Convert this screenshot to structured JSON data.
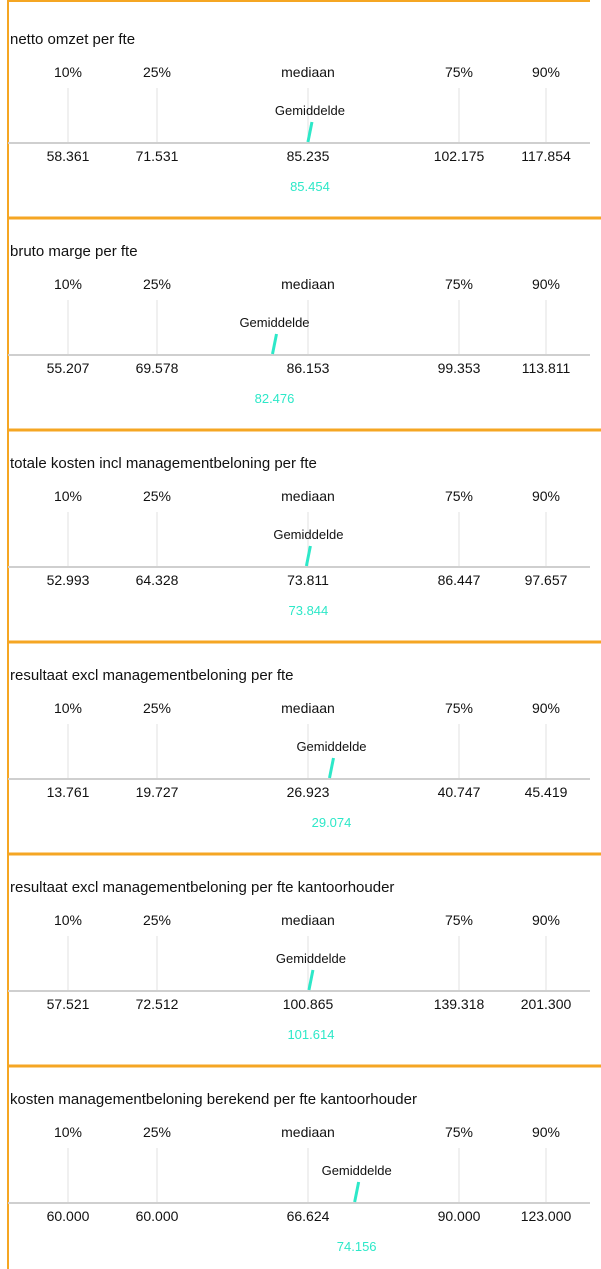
{
  "columns": [
    "10%",
    "25%",
    "mediaan",
    "75%",
    "90%"
  ],
  "mean_label": "Gemiddelde",
  "panels": [
    {
      "title": "netto omzet per fte",
      "values": [
        {
          "value": 58361,
          "label": "58.361"
        },
        {
          "value": 71531,
          "label": "71.531"
        },
        {
          "value": 85235,
          "label": "85.235"
        },
        {
          "value": 102175,
          "label": "102.175"
        },
        {
          "value": 117854,
          "label": "117.854"
        }
      ],
      "mean": {
        "value": 85454,
        "label": "85.454"
      }
    },
    {
      "title": "bruto marge per fte",
      "values": [
        {
          "value": 55207,
          "label": "55.207"
        },
        {
          "value": 69578,
          "label": "69.578"
        },
        {
          "value": 86153,
          "label": "86.153"
        },
        {
          "value": 99353,
          "label": "99.353"
        },
        {
          "value": 113811,
          "label": "113.811"
        }
      ],
      "mean": {
        "value": 82476,
        "label": "82.476"
      }
    },
    {
      "title": "totale kosten incl managementbeloning per fte",
      "values": [
        {
          "value": 52993,
          "label": "52.993"
        },
        {
          "value": 64328,
          "label": "64.328"
        },
        {
          "value": 73811,
          "label": "73.811"
        },
        {
          "value": 86447,
          "label": "86.447"
        },
        {
          "value": 97657,
          "label": "97.657"
        }
      ],
      "mean": {
        "value": 73844,
        "label": "73.844"
      }
    },
    {
      "title": "resultaat excl managementbeloning per fte",
      "values": [
        {
          "value": 13761,
          "label": "13.761"
        },
        {
          "value": 19727,
          "label": "19.727"
        },
        {
          "value": 26923,
          "label": "26.923"
        },
        {
          "value": 40747,
          "label": "40.747"
        },
        {
          "value": 45419,
          "label": "45.419"
        }
      ],
      "mean": {
        "value": 29074,
        "label": "29.074"
      }
    },
    {
      "title": "resultaat excl managementbeloning per fte kantoorhouder",
      "values": [
        {
          "value": 57521,
          "label": "57.521"
        },
        {
          "value": 72512,
          "label": "72.512"
        },
        {
          "value": 100865,
          "label": "100.865"
        },
        {
          "value": 139318,
          "label": "139.318"
        },
        {
          "value": 201300,
          "label": "201.300"
        }
      ],
      "mean": {
        "value": 101614,
        "label": "101.614"
      }
    },
    {
      "title": "kosten managementbeloning berekend per fte kantoorhouder",
      "values": [
        {
          "value": 60000,
          "label": "60.000"
        },
        {
          "value": 60000,
          "label": "60.000"
        },
        {
          "value": 66624,
          "label": "66.624"
        },
        {
          "value": 90000,
          "label": "90.000"
        },
        {
          "value": 123000,
          "label": "123.000"
        }
      ],
      "mean": {
        "value": 74156,
        "label": "74.156"
      }
    }
  ]
}
